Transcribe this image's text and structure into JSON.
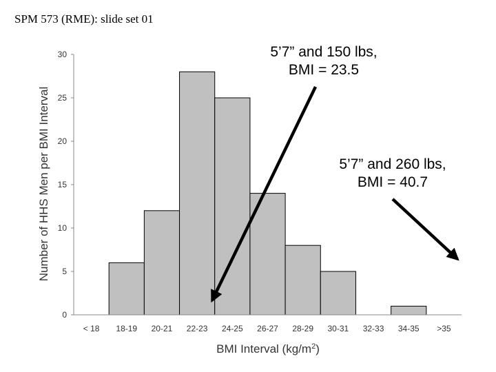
{
  "header": {
    "text": "SPM 573 (RME): slide set 01"
  },
  "chart_data": {
    "type": "bar",
    "title": "",
    "xlabel": "BMI Interval (kg/m",
    "xlabel_superscript": "2",
    "xlabel_suffix": ")",
    "ylabel": "Number of HHS Men per BMI Interval",
    "categories": [
      "< 18",
      "18-19",
      "20-21",
      "22-23",
      "24-25",
      "26-27",
      "28-29",
      "30-31",
      "32-33",
      "34-35",
      ">35"
    ],
    "values": [
      0,
      6,
      12,
      28,
      25,
      14,
      8,
      5,
      0,
      1,
      0
    ],
    "ylim": [
      0,
      30
    ],
    "yticks": [
      0,
      5,
      10,
      15,
      20,
      25,
      30
    ],
    "bar_color": "#c0c0c0",
    "grid": false
  },
  "annotations": [
    {
      "line1": "5’7” and 150 lbs,",
      "line2": "BMI = 23.5",
      "target_category": "22-23"
    },
    {
      "line1": "5’7” and 260 lbs,",
      "line2": "BMI = 40.7",
      "target_category": ">35"
    }
  ]
}
